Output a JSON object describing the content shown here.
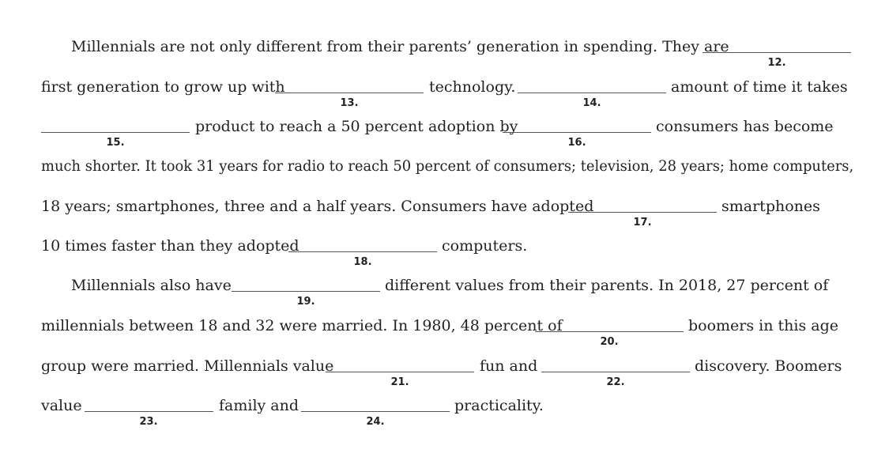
{
  "lines": [
    {
      "segments": [
        "Millennials are not only different from their parents’ generation in spending. They are"
      ],
      "blanks": [
        "12."
      ]
    },
    {
      "segments": [
        "first generation to grow up with",
        "technology.",
        "amount of time it takes"
      ],
      "blanks": [
        "13.",
        "14."
      ]
    },
    {
      "segments": [
        "product to reach a 50 percent adoption by",
        "consumers has become"
      ],
      "blanks": [
        "15.",
        "16."
      ]
    },
    {
      "segments": [
        "much shorter. It took 31 years for radio to reach 50 percent of consumers; television, 28 years; home computers,"
      ],
      "blanks": []
    },
    {
      "segments": [
        "18 years; smartphones, three and a half years. Consumers have adopted",
        "smartphones"
      ],
      "blanks": [
        "17."
      ]
    },
    {
      "segments": [
        "10 times faster than they adopted",
        "computers."
      ],
      "blanks": [
        "18."
      ]
    },
    {
      "segments": [
        "Millennials also have",
        "different values from their parents. In 2018, 27 percent of"
      ],
      "blanks": [
        "19."
      ]
    },
    {
      "segments": [
        "millennials between 18 and 32 were married. In 1980, 48 percent of",
        "boomers in this age"
      ],
      "blanks": [
        "20."
      ]
    },
    {
      "segments": [
        "group were married. Millennials value",
        "fun and",
        "discovery. Boomers"
      ],
      "blanks": [
        "21.",
        "22."
      ]
    },
    {
      "segments": [
        "value",
        "family and",
        "practicality."
      ],
      "blanks": [
        "23.",
        "24."
      ]
    }
  ]
}
